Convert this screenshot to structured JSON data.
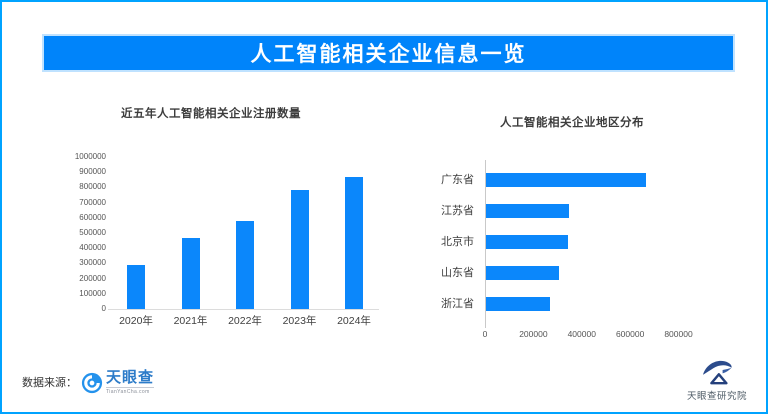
{
  "banner": {
    "title": "人工智能相关企业信息一览"
  },
  "colors": {
    "accent_blue": "#0084FA",
    "bar_blue": "#0B87FB",
    "border_blue": "#00A3FF"
  },
  "chart_data": [
    {
      "type": "bar",
      "orientation": "vertical",
      "title": "近五年人工智能相关企业注册数量",
      "categories": [
        "2020年",
        "2021年",
        "2022年",
        "2023年",
        "2024年"
      ],
      "values": [
        290000,
        470000,
        580000,
        780000,
        870000
      ],
      "xlabel": "",
      "ylabel": "",
      "ylim": [
        0,
        1000000
      ],
      "ytick_step": 100000,
      "grid": false,
      "legend": "none",
      "bar_color": "#0B87FB"
    },
    {
      "type": "bar",
      "orientation": "horizontal",
      "title": "人工智能相关企业地区分布",
      "categories": [
        "广东省",
        "江苏省",
        "北京市",
        "山东省",
        "浙江省"
      ],
      "values": [
        660000,
        345000,
        340000,
        300000,
        265000
      ],
      "xlabel": "",
      "ylabel": "",
      "xlim": [
        0,
        800000
      ],
      "xticks": [
        0,
        200000,
        400000,
        600000,
        800000
      ],
      "grid": false,
      "legend": "none",
      "bar_color": "#0B87FB"
    }
  ],
  "footer": {
    "source_label": "数据来源：",
    "logo_text": "天眼查",
    "logo_domain": "TianYanCha.com",
    "research_text": "天眼查研究院"
  }
}
